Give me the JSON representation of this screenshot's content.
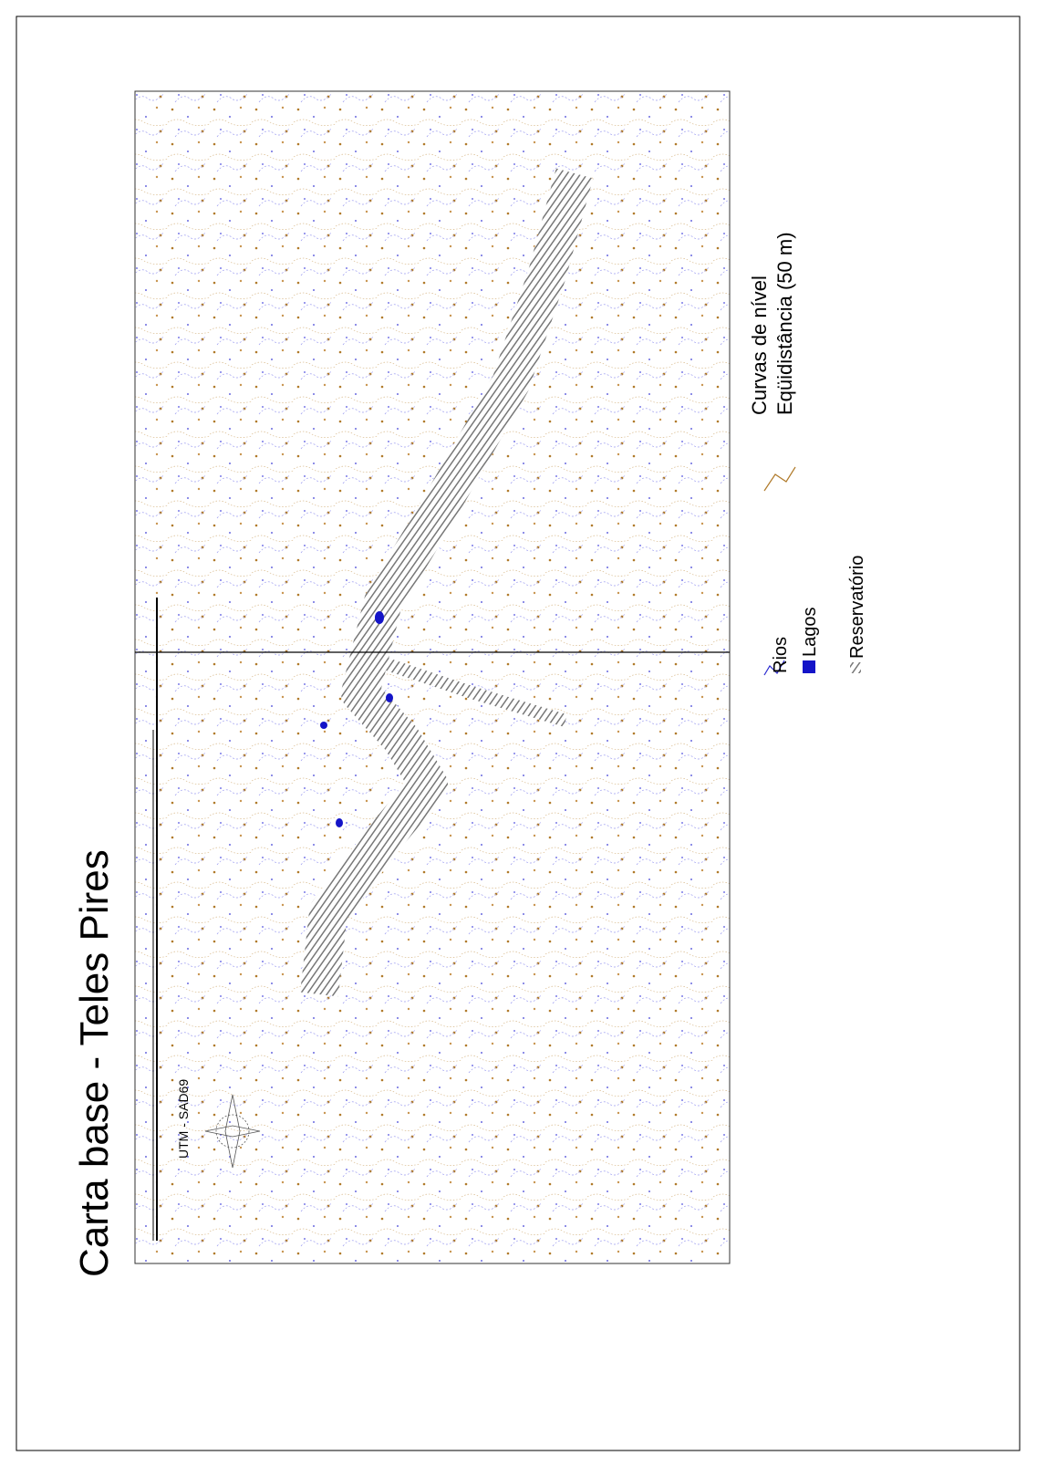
{
  "header": {
    "title": "Carta base - Teles Pires"
  },
  "legend": {
    "items": [
      "Rios",
      "Lagos",
      "Reservatório"
    ],
    "contours": {
      "title": "Curvas de nível",
      "note": "Eqüidistância (50 m)"
    }
  },
  "scale": {
    "projection": "UTM - SAD69"
  }
}
